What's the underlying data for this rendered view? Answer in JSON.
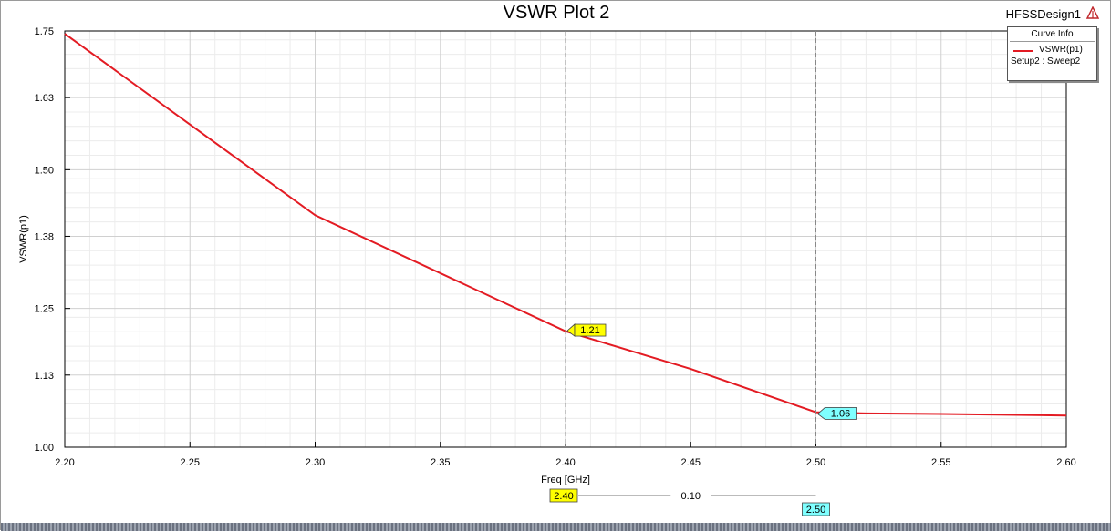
{
  "header": {
    "design_name": "HFSSDesign1"
  },
  "legend": {
    "title": "Curve Info",
    "series_label": "VSWR(p1)",
    "setup_label": "Setup2 : Sweep2"
  },
  "colors": {
    "curve": "#e31b23",
    "marker_yellow": "#ffff00",
    "marker_cyan": "#7fffff",
    "grid_major": "#d0d0d0",
    "grid_minor": "#ececec"
  },
  "chart_data": {
    "type": "line",
    "title": "VSWR Plot 2",
    "xlabel": "Freq [GHz]",
    "ylabel": "VSWR(p1)",
    "xlim": [
      2.2,
      2.6
    ],
    "ylim": [
      1.0,
      1.75
    ],
    "x_ticks": [
      "2.20",
      "2.25",
      "2.30",
      "2.35",
      "2.40",
      "2.45",
      "2.50",
      "2.55",
      "2.60"
    ],
    "y_ticks": [
      "1.00",
      "1.13",
      "1.25",
      "1.38",
      "1.50",
      "1.63",
      "1.75"
    ],
    "grid": true,
    "legend_position": "top-right",
    "series": [
      {
        "name": "VSWR(p1)",
        "x": [
          2.2,
          2.3,
          2.4,
          2.45,
          2.5,
          2.52,
          2.55,
          2.6
        ],
        "y": [
          1.745,
          1.418,
          1.209,
          1.141,
          1.063,
          1.061,
          1.06,
          1.057
        ]
      }
    ],
    "markers": [
      {
        "x": 2.4,
        "y": 1.21,
        "label": "1.21",
        "style": "yellow"
      },
      {
        "x": 2.5,
        "y": 1.06,
        "label": "1.06",
        "style": "cyan"
      }
    ],
    "delta": {
      "x1_label": "2.40",
      "x2_label": "2.50",
      "delta_label": "0.10"
    }
  }
}
